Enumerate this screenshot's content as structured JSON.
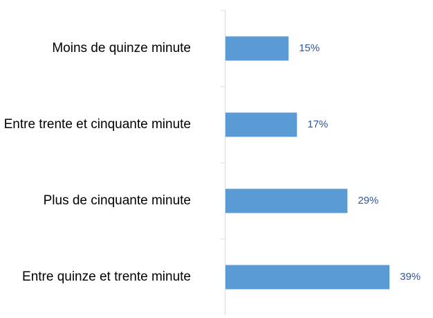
{
  "chart_data": {
    "type": "bar",
    "orientation": "horizontal",
    "categories": [
      "Moins de quinze minute",
      "Entre trente et cinquante minute",
      "Plus de cinquante minute",
      "Entre quinze et trente minute"
    ],
    "values": [
      15,
      17,
      29,
      39
    ],
    "value_labels": [
      "15%",
      "17%",
      "29%",
      "39%"
    ],
    "color": "#5b9bd5"
  }
}
